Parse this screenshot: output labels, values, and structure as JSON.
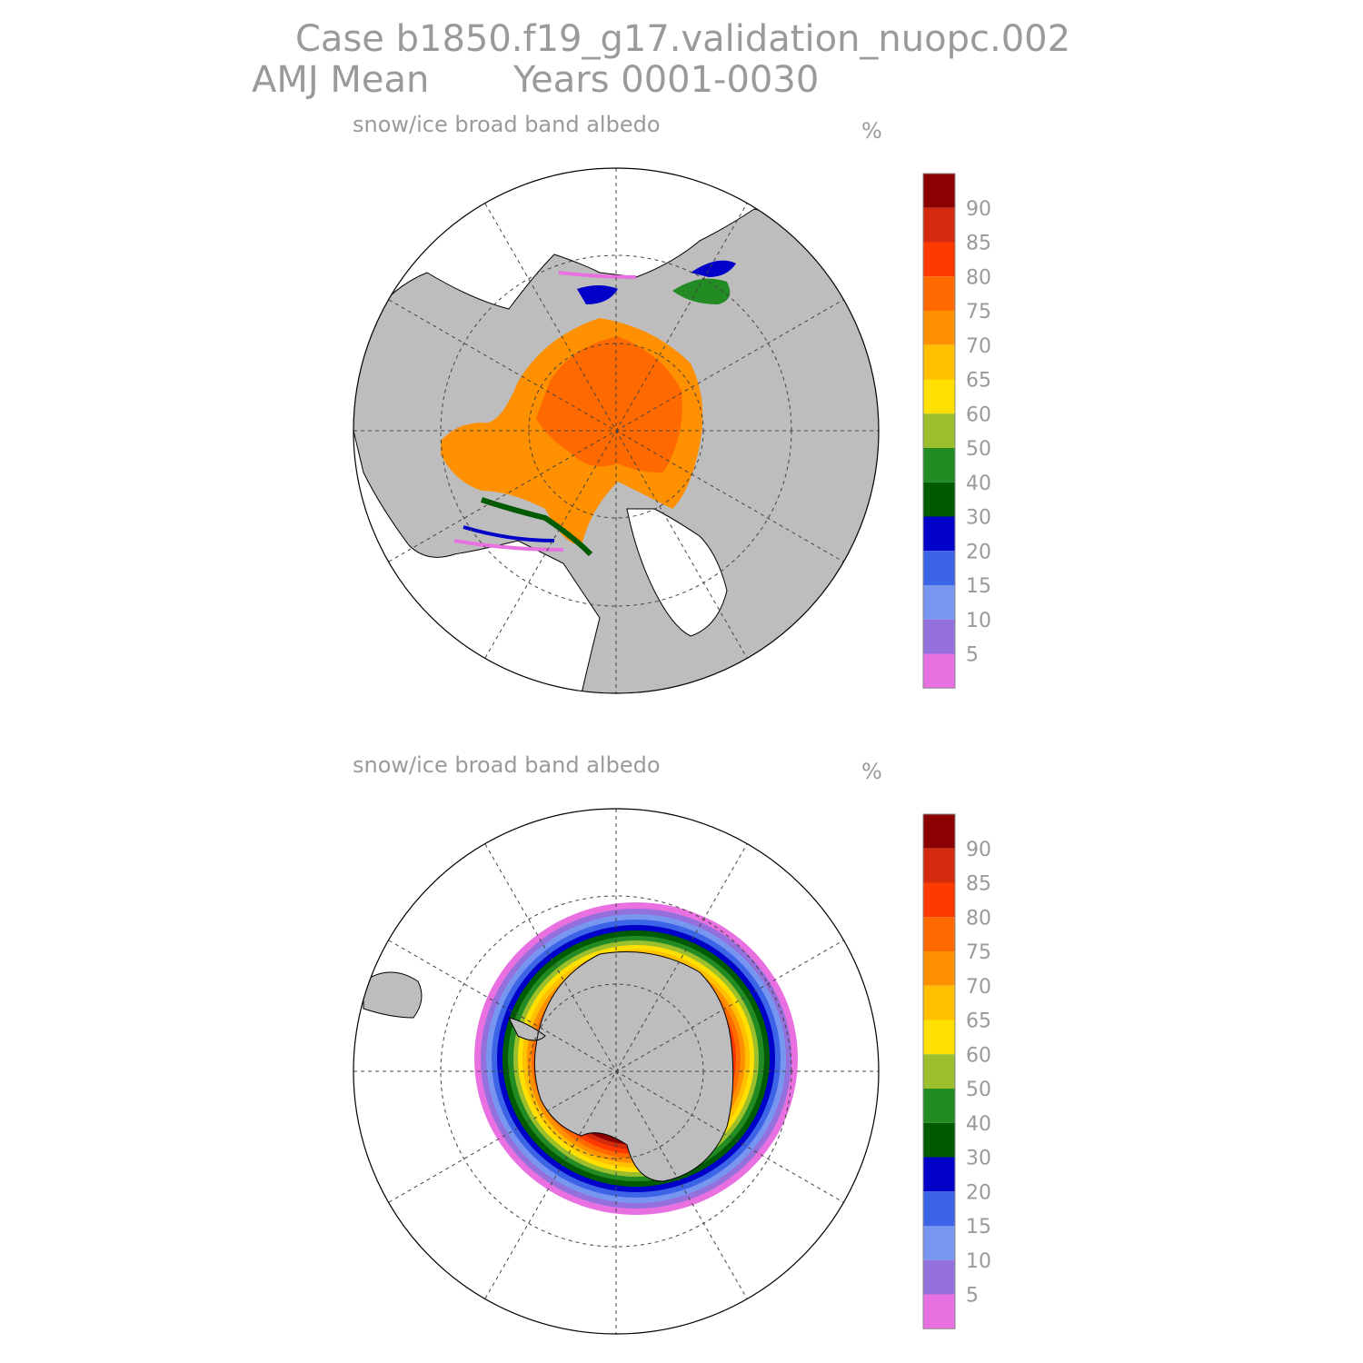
{
  "header": {
    "line1": "Case b1850.f19_g17.validation_nuopc.002",
    "line2_season": "AMJ Mean",
    "line2_years": "Years 0001-0030"
  },
  "panels": [
    {
      "id": "north",
      "variable": "snow/ice broad band albedo",
      "units": "%"
    },
    {
      "id": "south",
      "variable": "snow/ice broad band albedo",
      "units": "%"
    }
  ],
  "colorbar": {
    "labels": [
      "90",
      "85",
      "80",
      "75",
      "70",
      "65",
      "60",
      "50",
      "40",
      "30",
      "20",
      "15",
      "10",
      "5"
    ],
    "colors": [
      "#8b0000",
      "#d42a0e",
      "#ff3a00",
      "#ff6a00",
      "#ff9000",
      "#ffc000",
      "#ffe000",
      "#9cbf2e",
      "#238b23",
      "#005a00",
      "#0000c8",
      "#3c64e6",
      "#7896f0",
      "#9370db",
      "#e870e0"
    ]
  },
  "map_colors": {
    "land": "#bdbdbd",
    "ocean": "#ffffff",
    "coast": "#000000",
    "grid": "#444444"
  }
}
